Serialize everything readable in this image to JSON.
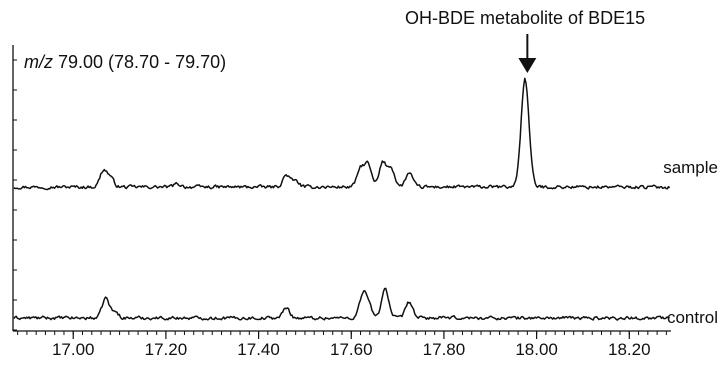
{
  "header": {
    "mz_prefix": "m/z",
    "mz_rest": " 79.00 (78.70 - 79.70)",
    "annotation": "OH-BDE metabolite of BDE15"
  },
  "chart_data": {
    "type": "line",
    "title": "",
    "xlabel": "",
    "ylabel": "",
    "xlim": [
      16.87,
      18.29
    ],
    "x_ticks": [
      "17.00",
      "17.20",
      "17.40",
      "17.60",
      "17.80",
      "18.00",
      "18.20"
    ],
    "x_tick_values": [
      17.0,
      17.2,
      17.4,
      17.6,
      17.8,
      18.0,
      18.2
    ],
    "annotations": [
      {
        "text": "OH-BDE metabolite of BDE15",
        "x": 17.98,
        "arrow": "down"
      }
    ],
    "series": [
      {
        "name": "sample",
        "baseline": 0,
        "peaks": [
          {
            "x": 17.065,
            "height": 16
          },
          {
            "x": 17.08,
            "height": 9
          },
          {
            "x": 17.225,
            "height": 3
          },
          {
            "x": 17.46,
            "height": 12
          },
          {
            "x": 17.48,
            "height": 6
          },
          {
            "x": 17.62,
            "height": 18
          },
          {
            "x": 17.636,
            "height": 22
          },
          {
            "x": 17.668,
            "height": 24
          },
          {
            "x": 17.686,
            "height": 19
          },
          {
            "x": 17.725,
            "height": 14
          },
          {
            "x": 17.975,
            "height": 108
          }
        ]
      },
      {
        "name": "control",
        "baseline": 0,
        "peaks": [
          {
            "x": 17.07,
            "height": 20
          },
          {
            "x": 17.09,
            "height": 6
          },
          {
            "x": 17.46,
            "height": 10
          },
          {
            "x": 17.625,
            "height": 23
          },
          {
            "x": 17.637,
            "height": 12
          },
          {
            "x": 17.673,
            "height": 30
          },
          {
            "x": 17.725,
            "height": 16
          }
        ]
      }
    ]
  }
}
